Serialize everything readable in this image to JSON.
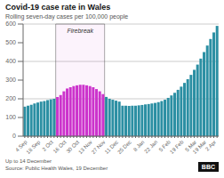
{
  "chart_data": {
    "type": "bar",
    "title": "Covid-19 case rate in Wales",
    "subtitle": "Rolling seven-day cases per 100,000 people",
    "annotations": [
      "Firebreak",
      "Up to 14 December",
      "Source: Public Health Wales, 19 December",
      "BBC"
    ],
    "categories": [
      "4 Sep",
      null,
      null,
      null,
      "18 Sep",
      null,
      null,
      null,
      "2 Oct",
      null,
      null,
      null,
      "16 Oct",
      null,
      null,
      null,
      "30 Oct",
      null,
      null,
      null,
      "13 Nov",
      null,
      null,
      null,
      "27 Nov",
      null,
      null,
      null,
      "11 Dec",
      null,
      null,
      null,
      "25 Dec",
      null,
      null,
      null,
      "8 Jan",
      null,
      null,
      null,
      "22 Jan",
      null,
      null,
      null,
      "5 Feb",
      null,
      null,
      null,
      "19 Feb",
      null,
      null,
      null,
      "5 Mar",
      null,
      null,
      "19 Mar",
      null,
      null,
      "2 Apr",
      null
    ],
    "values": [
      158,
      163,
      168,
      175,
      180,
      185,
      188,
      193,
      197,
      200,
      210,
      220,
      240,
      255,
      262,
      268,
      272,
      275,
      275,
      272,
      268,
      262,
      252,
      240,
      225,
      210,
      200,
      195,
      190,
      185,
      163,
      163,
      162,
      163,
      163,
      165,
      167,
      170,
      172,
      175,
      178,
      182,
      188,
      195,
      205,
      218,
      232,
      248,
      265,
      285,
      305,
      328,
      355,
      383,
      415,
      450,
      485,
      520,
      555,
      590
    ],
    "colors": [
      "#2b8fa3",
      "#2b8fa3",
      "#2b8fa3",
      "#2b8fa3",
      "#2b8fa3",
      "#2b8fa3",
      "#2b8fa3",
      "#2b8fa3",
      "#2b8fa3",
      "#2b8fa3",
      "#cc33cc",
      "#cc33cc",
      "#cc33cc",
      "#cc33cc",
      "#cc33cc",
      "#cc33cc",
      "#cc33cc",
      "#cc33cc",
      "#cc33cc",
      "#cc33cc",
      "#cc33cc",
      "#cc33cc",
      "#cc33cc",
      "#cc33cc",
      "#cc33cc",
      "#2b8fa3",
      "#2b8fa3",
      "#2b8fa3",
      "#2b8fa3",
      "#2b8fa3",
      "#2b8fa3",
      "#2b8fa3",
      "#2b8fa3",
      "#2b8fa3",
      "#2b8fa3",
      "#2b8fa3",
      "#2b8fa3",
      "#2b8fa3",
      "#2b8fa3",
      "#2b8fa3",
      "#2b8fa3",
      "#2b8fa3",
      "#2b8fa3",
      "#2b8fa3",
      "#2b8fa3",
      "#2b8fa3",
      "#2b8fa3",
      "#2b8fa3",
      "#2b8fa3",
      "#2b8fa3",
      "#2b8fa3",
      "#2b8fa3",
      "#2b8fa3",
      "#2b8fa3",
      "#2b8fa3",
      "#2b8fa3",
      "#2b8fa3",
      "#2b8fa3",
      "#2b8fa3",
      "#2b8fa3"
    ],
    "ylim": [
      0,
      600
    ],
    "yticks": [
      0,
      100,
      200,
      300,
      400,
      500,
      600
    ],
    "grid": true
  }
}
